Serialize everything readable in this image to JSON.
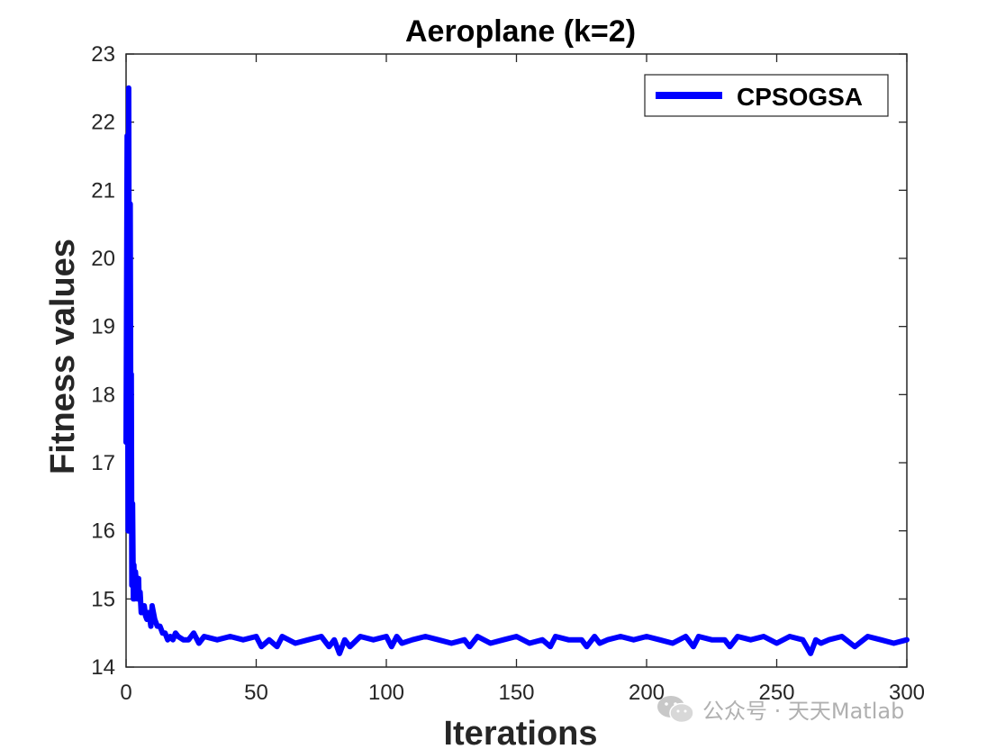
{
  "chart_data": {
    "type": "line",
    "title": "Aeroplane (k=2)",
    "xlabel": "Iterations",
    "ylabel": "Fitness values",
    "xlim": [
      0,
      300
    ],
    "ylim": [
      14,
      23
    ],
    "xticks": [
      0,
      50,
      100,
      150,
      200,
      250,
      300
    ],
    "yticks": [
      14,
      15,
      16,
      17,
      18,
      19,
      20,
      21,
      22,
      23
    ],
    "grid": false,
    "legend_position": "top-right",
    "series": [
      {
        "name": "CPSOGSA",
        "color": "#0000ff",
        "x": [
          0,
          0.4,
          0.8,
          1,
          1.3,
          1.6,
          1.9,
          2,
          2.2,
          2.5,
          2.8,
          3,
          3.3,
          3.6,
          4,
          4.4,
          4.8,
          5,
          5.4,
          5.8,
          6,
          6.5,
          7,
          7.5,
          8,
          8.5,
          9,
          9.5,
          10,
          11,
          12,
          13,
          14,
          15,
          16,
          17,
          18,
          19,
          20,
          22,
          24,
          26,
          28,
          30,
          35,
          40,
          45,
          50,
          52,
          55,
          58,
          60,
          65,
          70,
          75,
          78,
          80,
          82,
          84,
          86,
          90,
          95,
          100,
          102,
          104,
          106,
          110,
          115,
          120,
          125,
          130,
          132,
          135,
          140,
          145,
          150,
          155,
          160,
          163,
          165,
          170,
          175,
          177,
          180,
          182,
          185,
          190,
          195,
          200,
          205,
          210,
          215,
          218,
          220,
          225,
          230,
          232,
          235,
          240,
          245,
          250,
          255,
          260,
          263,
          265,
          267,
          270,
          275,
          280,
          285,
          290,
          295,
          300
        ],
        "y": [
          17.3,
          21.8,
          16.0,
          22.5,
          16.2,
          20.8,
          16.0,
          18.3,
          15.2,
          16.4,
          15.0,
          15.5,
          15.0,
          15.4,
          15.2,
          15.0,
          15.3,
          15.0,
          15.1,
          14.8,
          14.9,
          14.8,
          14.9,
          14.75,
          14.7,
          14.8,
          14.75,
          14.6,
          14.9,
          14.7,
          14.6,
          14.6,
          14.5,
          14.5,
          14.4,
          14.45,
          14.4,
          14.5,
          14.45,
          14.4,
          14.4,
          14.5,
          14.35,
          14.45,
          14.4,
          14.45,
          14.4,
          14.45,
          14.3,
          14.4,
          14.3,
          14.45,
          14.35,
          14.4,
          14.45,
          14.3,
          14.4,
          14.2,
          14.4,
          14.3,
          14.45,
          14.4,
          14.45,
          14.3,
          14.45,
          14.35,
          14.4,
          14.45,
          14.4,
          14.35,
          14.4,
          14.3,
          14.45,
          14.35,
          14.4,
          14.45,
          14.35,
          14.4,
          14.3,
          14.45,
          14.4,
          14.4,
          14.3,
          14.45,
          14.35,
          14.4,
          14.45,
          14.4,
          14.45,
          14.4,
          14.35,
          14.45,
          14.3,
          14.45,
          14.4,
          14.4,
          14.3,
          14.45,
          14.4,
          14.45,
          14.35,
          14.45,
          14.4,
          14.2,
          14.4,
          14.35,
          14.4,
          14.45,
          14.3,
          14.45,
          14.4,
          14.35,
          14.4
        ]
      }
    ]
  },
  "watermark": {
    "text": "公众号 · 天天Matlab",
    "icon": "wechat-icon"
  }
}
